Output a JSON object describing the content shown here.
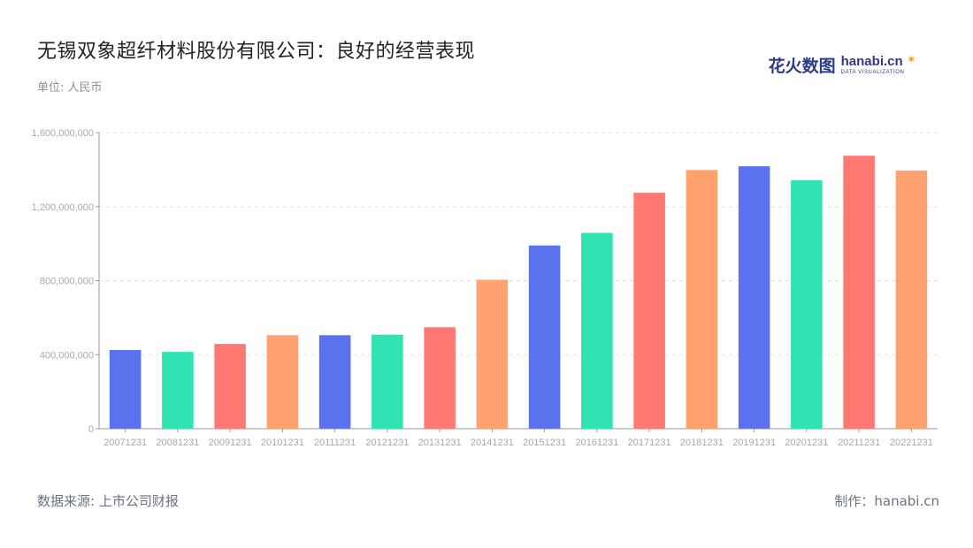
{
  "header": {
    "title": "无锡双象超纤材料股份有限公司：良好的经营表现",
    "unit": "单位: 人民币"
  },
  "logo": {
    "cn": "花火数图",
    "en": "hanabi.cn",
    "sub": "DATA VISUALIZATION"
  },
  "footer": {
    "source": "数据来源: 上市公司财报",
    "credit": "制作：hanabi.cn"
  },
  "colors": {
    "palette": [
      "#5b72ee",
      "#2fe3b2",
      "#ff7872",
      "#ffa26f"
    ],
    "grid": "#e3e3e3",
    "axis": "#999999",
    "tick_text": "#a3a8b0"
  },
  "chart_data": {
    "type": "bar",
    "categories": [
      "20071231",
      "20081231",
      "20091231",
      "20101231",
      "20111231",
      "20121231",
      "20131231",
      "20141231",
      "20151231",
      "20161231",
      "20171231",
      "20181231",
      "20191231",
      "20201231",
      "20211231",
      "20221231"
    ],
    "values": [
      425000000,
      415000000,
      458000000,
      505000000,
      505000000,
      508000000,
      548000000,
      805000000,
      990000000,
      1058000000,
      1275000000,
      1398000000,
      1418000000,
      1342000000,
      1475000000,
      1395000000
    ],
    "ylim": [
      0,
      1600000000
    ],
    "yticks": [
      0,
      400000000,
      800000000,
      1200000000,
      1600000000
    ],
    "ytick_labels": [
      "0",
      "400,000,000",
      "800,000,000",
      "1,200,000,000",
      "1,600,000,000"
    ],
    "grid": true,
    "xlabel": "",
    "ylabel": ""
  }
}
